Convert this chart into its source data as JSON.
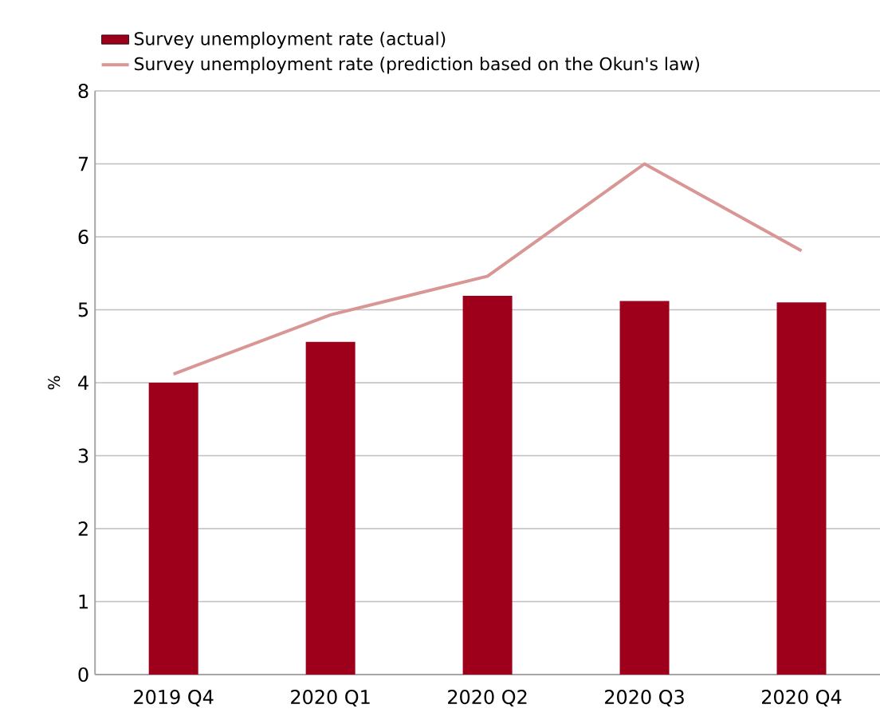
{
  "chart_data": {
    "type": "bar",
    "ylabel": "%",
    "categories": [
      "2019 Q4",
      "2020 Q1",
      "2020 Q2",
      "2020 Q3",
      "2020 Q4"
    ],
    "series": [
      {
        "name": "Survey unemployment rate (actual)",
        "color": "#9e001c",
        "values": [
          4.0,
          4.56,
          5.19,
          5.12,
          5.1
        ]
      },
      {
        "name": "Survey unemployment rate (prediction based on the Okun's law)",
        "type": "line",
        "color": "#d89694",
        "values": [
          4.12,
          4.93,
          5.46,
          7.0,
          5.81
        ]
      }
    ],
    "ylim": [
      0,
      8
    ],
    "yticks": [
      0,
      1,
      2,
      3,
      4,
      5,
      6,
      7,
      8
    ],
    "grid": "y",
    "legend": "top left"
  }
}
